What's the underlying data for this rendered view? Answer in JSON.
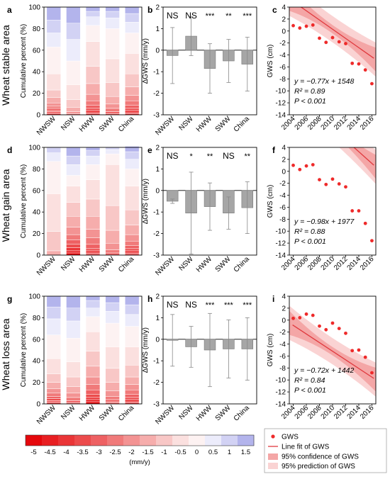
{
  "rows": [
    {
      "label": "Wheat stable area"
    },
    {
      "label": "Wheat gain area"
    },
    {
      "label": "Wheat loss area"
    }
  ],
  "panel_letters": [
    "a",
    "b",
    "c",
    "d",
    "e",
    "f",
    "g",
    "h",
    "i"
  ],
  "stack_ylabel": "Cumulative percent (%)",
  "bar_ylabel": "∆GWS (mm/y)",
  "line_ylabel": "GWS (cm)",
  "regions": [
    "NWSW",
    "NSW",
    "HWW",
    "SWW",
    "China"
  ],
  "colorbar": {
    "ticks": [
      "-5",
      "-4.5",
      "-4",
      "-3.5",
      "-3",
      "-2.5",
      "-2",
      "-1.5",
      "-1",
      "-0.5",
      "0",
      "0.5",
      "1",
      "1.5"
    ],
    "unit": "(mm/y)"
  },
  "legend": {
    "items": [
      "GWS",
      "Line fit of GWS",
      "95% confidence of GWS",
      "95% prediction of GWS"
    ]
  },
  "colors": {
    "point": "#ee2a2a",
    "fit_line": "#e0393e",
    "confidence": "#f4a6a6",
    "prediction": "#fad3d3",
    "bar": "#a6a6a6"
  },
  "chart_data": [
    {
      "panel": "a",
      "type": "bar",
      "stacked": true,
      "categories": [
        "NWSW",
        "NSW",
        "HWW",
        "SWW",
        "China"
      ],
      "ylim": [
        0,
        100
      ],
      "yticks": [
        "0",
        "20",
        "40",
        "60",
        "80",
        "100"
      ],
      "ylabel": "Cumulative percent (%)",
      "stacks": [
        [
          [
            -5,
            1
          ],
          [
            -4.5,
            1
          ],
          [
            -4,
            1
          ],
          [
            -3.5,
            1
          ],
          [
            -3,
            2
          ],
          [
            -2.5,
            2
          ],
          [
            -2,
            3
          ],
          [
            -1.5,
            5
          ],
          [
            -1,
            7
          ],
          [
            -0.5,
            15
          ],
          [
            0,
            25
          ],
          [
            0.5,
            13
          ],
          [
            1,
            12
          ],
          [
            1.5,
            12
          ]
        ],
        [
          [
            -3,
            1
          ],
          [
            -2,
            2
          ],
          [
            -1.5,
            4
          ],
          [
            -1,
            7
          ],
          [
            -0.5,
            14
          ],
          [
            0,
            22
          ],
          [
            0.5,
            20
          ],
          [
            1,
            15
          ],
          [
            1.5,
            15
          ]
        ],
        [
          [
            -5,
            1
          ],
          [
            -4.5,
            1
          ],
          [
            -4,
            2
          ],
          [
            -3.5,
            2
          ],
          [
            -3,
            3
          ],
          [
            -2.5,
            4
          ],
          [
            -2,
            6
          ],
          [
            -1.5,
            10
          ],
          [
            -1,
            16
          ],
          [
            -0.5,
            23
          ],
          [
            0,
            15
          ],
          [
            0.5,
            8
          ],
          [
            1,
            5
          ],
          [
            1.5,
            4
          ]
        ],
        [
          [
            -4,
            1
          ],
          [
            -3,
            2
          ],
          [
            -2.5,
            3
          ],
          [
            -2,
            4
          ],
          [
            -1.5,
            7
          ],
          [
            -1,
            13
          ],
          [
            -0.5,
            22
          ],
          [
            0,
            28
          ],
          [
            0.5,
            10
          ],
          [
            1,
            6
          ],
          [
            1.5,
            4
          ]
        ],
        [
          [
            -5,
            1
          ],
          [
            -4.5,
            1
          ],
          [
            -4,
            2
          ],
          [
            -3.5,
            2
          ],
          [
            -3,
            3
          ],
          [
            -2.5,
            4
          ],
          [
            -2,
            5
          ],
          [
            -1.5,
            8
          ],
          [
            -1,
            12
          ],
          [
            -0.5,
            19
          ],
          [
            0,
            19
          ],
          [
            0.5,
            10
          ],
          [
            1,
            8
          ],
          [
            1.5,
            6
          ]
        ]
      ]
    },
    {
      "panel": "b",
      "type": "bar",
      "categories": [
        "NWSW",
        "NSW",
        "HWW",
        "SWW",
        "China"
      ],
      "values": [
        -0.25,
        0.65,
        -0.85,
        -0.5,
        -0.65
      ],
      "errors": [
        1.3,
        0.9,
        1.15,
        1.0,
        1.25
      ],
      "ylim": [
        -3,
        2
      ],
      "yticks": [
        "-3",
        "-2",
        "-1",
        "0",
        "1",
        "2"
      ],
      "ylabel": "∆GWS (mm/y)",
      "significance": [
        "NS",
        "NS",
        "***",
        "**",
        "***"
      ]
    },
    {
      "panel": "c",
      "type": "scatter",
      "x": [
        2004,
        2005,
        2006,
        2007,
        2008,
        2009,
        2010,
        2011,
        2012,
        2013,
        2014,
        2015,
        2016
      ],
      "y": [
        0.9,
        0.5,
        0.8,
        1.0,
        -1.2,
        -1.9,
        -1.1,
        -1.8,
        -2.1,
        -5.4,
        -5.5,
        -6.5,
        -8.8
      ],
      "fit": {
        "slope": -0.77,
        "intercept": 1548
      },
      "xlim": [
        2003.4,
        2016.6
      ],
      "ylim": [
        -14,
        4
      ],
      "xticks": [
        "2004",
        "2006",
        "2008",
        "2010",
        "2012",
        "2014",
        "2016"
      ],
      "yticks": [
        "-14",
        "-12",
        "-10",
        "-8",
        "-6",
        "-4",
        "-2",
        "0",
        "2",
        "4"
      ],
      "ylabel": "GWS (cm)",
      "equation": [
        "y = −0.77x + 1548",
        "R² = 0.89",
        "P < 0.001"
      ]
    },
    {
      "panel": "d",
      "type": "bar",
      "stacked": true,
      "categories": [
        "NWSW",
        "NSW",
        "HWW",
        "SWW",
        "China"
      ],
      "ylim": [
        0,
        100
      ],
      "yticks": [
        "0",
        "20",
        "40",
        "60",
        "80",
        "100"
      ],
      "ylabel": "Cumulative percent (%)",
      "stacks": [
        [
          [
            -1.5,
            4
          ],
          [
            -1,
            18
          ],
          [
            -0.5,
            35
          ],
          [
            0,
            30
          ],
          [
            0.5,
            8
          ],
          [
            1,
            5
          ]
        ],
        [
          [
            -5,
            2
          ],
          [
            -4.5,
            2
          ],
          [
            -4,
            3
          ],
          [
            -3.5,
            3
          ],
          [
            -3,
            4
          ],
          [
            -2.5,
            5
          ],
          [
            -2,
            7
          ],
          [
            -1.5,
            10
          ],
          [
            -1,
            13
          ],
          [
            -0.5,
            15
          ],
          [
            0,
            10
          ],
          [
            0.5,
            10
          ],
          [
            1,
            8
          ],
          [
            1.5,
            8
          ]
        ],
        [
          [
            -5,
            1
          ],
          [
            -4.5,
            1
          ],
          [
            -4,
            2
          ],
          [
            -3.5,
            2
          ],
          [
            -3,
            4
          ],
          [
            -2.5,
            6
          ],
          [
            -2,
            8
          ],
          [
            -1.5,
            12
          ],
          [
            -1,
            16
          ],
          [
            -0.5,
            18
          ],
          [
            0,
            14
          ],
          [
            0.5,
            8
          ],
          [
            1,
            5
          ],
          [
            1.5,
            3
          ]
        ],
        [
          [
            -3,
            2
          ],
          [
            -2.5,
            3
          ],
          [
            -2,
            6
          ],
          [
            -1.5,
            12
          ],
          [
            -1,
            23
          ],
          [
            -0.5,
            38
          ],
          [
            0,
            10
          ],
          [
            0.5,
            4
          ],
          [
            1,
            2
          ]
        ],
        [
          [
            -5,
            1
          ],
          [
            -4.5,
            1
          ],
          [
            -4,
            2
          ],
          [
            -3.5,
            2
          ],
          [
            -3,
            3
          ],
          [
            -2.5,
            4
          ],
          [
            -2,
            6
          ],
          [
            -1.5,
            9
          ],
          [
            -1,
            14
          ],
          [
            -0.5,
            22
          ],
          [
            0,
            16
          ],
          [
            0.5,
            9
          ],
          [
            1,
            7
          ],
          [
            1.5,
            5
          ]
        ]
      ]
    },
    {
      "panel": "e",
      "type": "bar",
      "categories": [
        "NWSW",
        "NSW",
        "HWW",
        "SWW",
        "China"
      ],
      "values": [
        -0.5,
        -1.05,
        -0.75,
        -1.05,
        -0.8
      ],
      "errors": [
        0.1,
        1.9,
        1.1,
        0.75,
        1.2
      ],
      "ylim": [
        -3,
        2
      ],
      "yticks": [
        "-3",
        "-2",
        "-1",
        "0",
        "1",
        "2"
      ],
      "ylabel": "∆GWS (mm/y)",
      "significance": [
        "NS",
        "*",
        "**",
        "NS",
        "**"
      ]
    },
    {
      "panel": "f",
      "type": "scatter",
      "x": [
        2004,
        2005,
        2006,
        2007,
        2008,
        2009,
        2010,
        2011,
        2012,
        2013,
        2014,
        2015,
        2016
      ],
      "y": [
        1.0,
        0.3,
        0.9,
        1.1,
        -1.4,
        -2.2,
        -1.3,
        -2.1,
        -2.6,
        -6.6,
        -6.6,
        -8.7,
        -11.6
      ],
      "fit": {
        "slope": -0.98,
        "intercept": 1977
      },
      "xlim": [
        2003.4,
        2016.6
      ],
      "ylim": [
        -14,
        4
      ],
      "xticks": [
        "2004",
        "2006",
        "2008",
        "2010",
        "2012",
        "2014",
        "2016"
      ],
      "yticks": [
        "-14",
        "-12",
        "-10",
        "-8",
        "-6",
        "-4",
        "-2",
        "0",
        "2",
        "4"
      ],
      "ylabel": "GWS (cm)",
      "equation": [
        "y = −0.98x + 1977",
        "R² = 0.88",
        "P < 0.001"
      ]
    },
    {
      "panel": "g",
      "type": "bar",
      "stacked": true,
      "categories": [
        "NWSW",
        "NSW",
        "HWW",
        "SWW",
        "China"
      ],
      "ylim": [
        0,
        100
      ],
      "yticks": [
        "0",
        "20",
        "40",
        "60",
        "80",
        "100"
      ],
      "ylabel": "Cumulative percent (%)",
      "stacks": [
        [
          [
            -5,
            1
          ],
          [
            -4.5,
            1
          ],
          [
            -4,
            1
          ],
          [
            -3.5,
            2
          ],
          [
            -3,
            2
          ],
          [
            -2.5,
            3
          ],
          [
            -2,
            4
          ],
          [
            -1.5,
            6
          ],
          [
            -1,
            8
          ],
          [
            -0.5,
            14
          ],
          [
            0,
            22
          ],
          [
            0.5,
            15
          ],
          [
            1,
            11
          ],
          [
            1.5,
            10
          ]
        ],
        [
          [
            -3.5,
            1
          ],
          [
            -3,
            2
          ],
          [
            -2.5,
            3
          ],
          [
            -2,
            4
          ],
          [
            -1.5,
            6
          ],
          [
            -1,
            9
          ],
          [
            -0.5,
            14
          ],
          [
            0,
            22
          ],
          [
            0.5,
            16
          ],
          [
            1,
            12
          ],
          [
            1.5,
            11
          ]
        ],
        [
          [
            -5,
            2
          ],
          [
            -4.5,
            2
          ],
          [
            -4,
            2
          ],
          [
            -3.5,
            3
          ],
          [
            -3,
            4
          ],
          [
            -2.5,
            5
          ],
          [
            -2,
            7
          ],
          [
            -1.5,
            10
          ],
          [
            -1,
            14
          ],
          [
            -0.5,
            18
          ],
          [
            0,
            14
          ],
          [
            0.5,
            8
          ],
          [
            1,
            7
          ],
          [
            1.5,
            4
          ]
        ],
        [
          [
            -4,
            1
          ],
          [
            -3.5,
            1
          ],
          [
            -3,
            2
          ],
          [
            -2.5,
            3
          ],
          [
            -2,
            5
          ],
          [
            -1.5,
            8
          ],
          [
            -1,
            13
          ],
          [
            -0.5,
            20
          ],
          [
            0,
            22
          ],
          [
            0.5,
            11
          ],
          [
            1,
            8
          ],
          [
            1.5,
            6
          ]
        ],
        [
          [
            -5,
            1
          ],
          [
            -4.5,
            1
          ],
          [
            -4,
            2
          ],
          [
            -3.5,
            2
          ],
          [
            -3,
            3
          ],
          [
            -2.5,
            4
          ],
          [
            -2,
            5
          ],
          [
            -1.5,
            7
          ],
          [
            -1,
            11
          ],
          [
            -0.5,
            17
          ],
          [
            0,
            19
          ],
          [
            0.5,
            11
          ],
          [
            1,
            9
          ],
          [
            1.5,
            8
          ]
        ]
      ]
    },
    {
      "panel": "h",
      "type": "bar",
      "categories": [
        "NWSW",
        "NSW",
        "HWW",
        "SWW",
        "China"
      ],
      "values": [
        -0.05,
        -0.35,
        -0.5,
        -0.45,
        -0.45
      ],
      "errors": [
        1.2,
        0.95,
        1.7,
        1.35,
        1.45
      ],
      "ylim": [
        -3,
        2
      ],
      "yticks": [
        "-3",
        "-2",
        "-1",
        "0",
        "1",
        "2"
      ],
      "ylabel": "∆GWS (mm/y)",
      "significance": [
        "NS",
        "NS",
        "***",
        "***",
        "***"
      ]
    },
    {
      "panel": "i",
      "type": "scatter",
      "x": [
        2004,
        2005,
        2006,
        2007,
        2008,
        2009,
        2010,
        2011,
        2012,
        2013,
        2014,
        2015,
        2016
      ],
      "y": [
        0.3,
        0.4,
        1.0,
        0.8,
        -1.0,
        -1.6,
        -0.5,
        -1.4,
        -2.2,
        -5.1,
        -5.0,
        -6.2,
        -8.8
      ],
      "fit": {
        "slope": -0.72,
        "intercept": 1442
      },
      "xlim": [
        2003.4,
        2016.6
      ],
      "ylim": [
        -14,
        4
      ],
      "xticks": [
        "2004",
        "2006",
        "2008",
        "2010",
        "2012",
        "2014",
        "2016"
      ],
      "yticks": [
        "-14",
        "-12",
        "-10",
        "-8",
        "-6",
        "-4",
        "-2",
        "0",
        "2",
        "4"
      ],
      "ylabel": "GWS (cm)",
      "equation": [
        "y = −0.72x + 1442",
        "R² = 0.84",
        "P < 0.001"
      ]
    }
  ]
}
